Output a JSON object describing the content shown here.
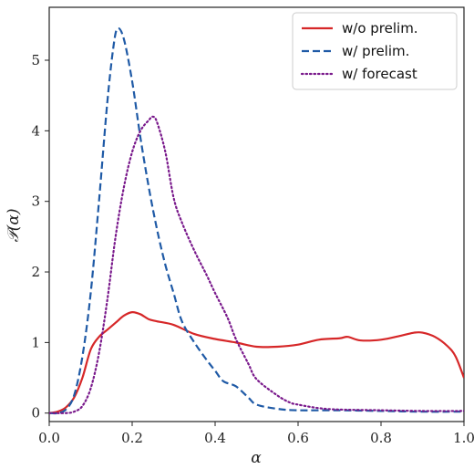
{
  "chart_data": {
    "type": "line",
    "xlabel": "α",
    "ylabel": "𝒫(α)",
    "xlim": [
      0.0,
      1.0
    ],
    "ylim": [
      -0.12,
      5.75
    ],
    "xticks": [
      "0.0",
      "0.2",
      "0.4",
      "0.6",
      "0.8",
      "1.0"
    ],
    "yticks": [
      "0",
      "1",
      "2",
      "3",
      "4",
      "5"
    ],
    "legend_position": "top-right",
    "series": [
      {
        "name": "w/o prelim.",
        "color": "#d62728",
        "style": "solid",
        "x": [
          0.0,
          0.02,
          0.04,
          0.06,
          0.08,
          0.1,
          0.12,
          0.14,
          0.16,
          0.18,
          0.2,
          0.22,
          0.24,
          0.26,
          0.3,
          0.35,
          0.4,
          0.45,
          0.5,
          0.55,
          0.6,
          0.65,
          0.7,
          0.72,
          0.75,
          0.8,
          0.85,
          0.88,
          0.9,
          0.93,
          0.96,
          0.98,
          1.0
        ],
        "y": [
          0.0,
          0.02,
          0.08,
          0.22,
          0.5,
          0.9,
          1.08,
          1.18,
          1.28,
          1.38,
          1.43,
          1.4,
          1.33,
          1.3,
          1.25,
          1.12,
          1.05,
          1.0,
          0.94,
          0.94,
          0.97,
          1.04,
          1.06,
          1.08,
          1.03,
          1.04,
          1.1,
          1.14,
          1.14,
          1.08,
          0.95,
          0.8,
          0.5
        ]
      },
      {
        "name": "w/ prelim.",
        "color": "#1f5aa6",
        "style": "dashed",
        "x": [
          0.0,
          0.02,
          0.04,
          0.06,
          0.08,
          0.1,
          0.12,
          0.14,
          0.155,
          0.165,
          0.18,
          0.2,
          0.22,
          0.24,
          0.26,
          0.28,
          0.3,
          0.32,
          0.35,
          0.38,
          0.4,
          0.42,
          0.45,
          0.48,
          0.5,
          0.55,
          0.6,
          0.7,
          0.8,
          0.9,
          1.0
        ],
        "y": [
          0.0,
          0.0,
          0.05,
          0.25,
          0.8,
          1.7,
          3.0,
          4.4,
          5.2,
          5.45,
          5.3,
          4.7,
          3.9,
          3.2,
          2.6,
          2.1,
          1.7,
          1.3,
          1.0,
          0.75,
          0.6,
          0.45,
          0.38,
          0.22,
          0.12,
          0.06,
          0.04,
          0.04,
          0.03,
          0.02,
          0.02
        ]
      },
      {
        "name": "w/ forecast",
        "color": "#7a1a8c",
        "style": "dotted",
        "x": [
          0.0,
          0.04,
          0.06,
          0.08,
          0.1,
          0.12,
          0.14,
          0.16,
          0.18,
          0.2,
          0.22,
          0.24,
          0.25,
          0.26,
          0.28,
          0.3,
          0.32,
          0.35,
          0.38,
          0.4,
          0.43,
          0.45,
          0.48,
          0.5,
          0.55,
          0.58,
          0.6,
          0.65,
          0.7,
          0.8,
          0.9,
          1.0
        ],
        "y": [
          0.0,
          0.0,
          0.02,
          0.1,
          0.35,
          0.85,
          1.6,
          2.5,
          3.2,
          3.7,
          4.0,
          4.15,
          4.2,
          4.12,
          3.7,
          3.05,
          2.7,
          2.3,
          1.95,
          1.7,
          1.35,
          1.05,
          0.7,
          0.48,
          0.25,
          0.15,
          0.12,
          0.07,
          0.05,
          0.04,
          0.03,
          0.03
        ]
      }
    ]
  }
}
